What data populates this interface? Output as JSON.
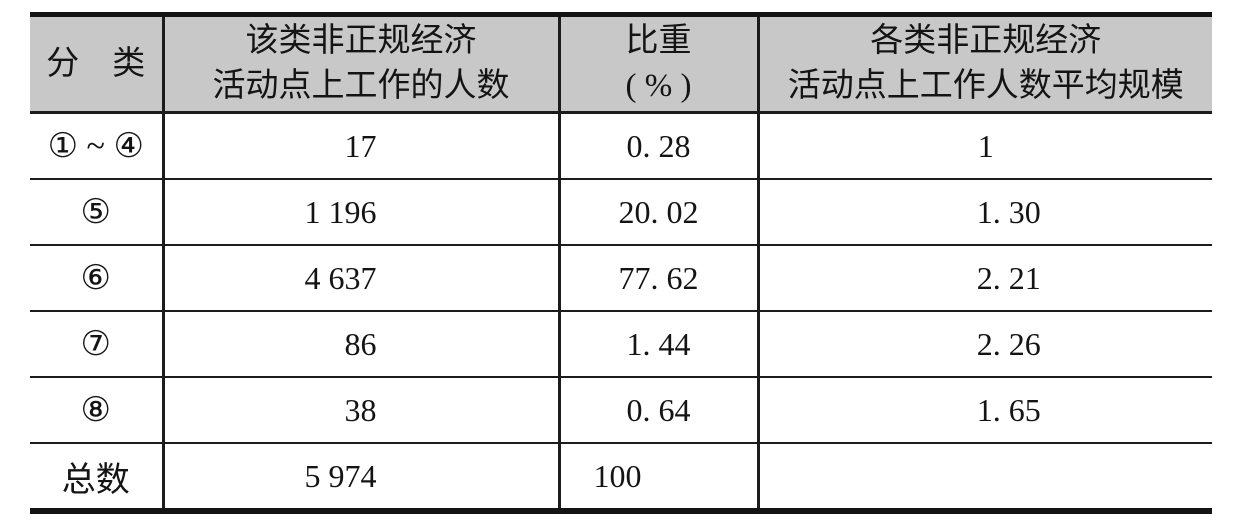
{
  "table": {
    "header": {
      "category": "分　类",
      "workers_line1": "该类非正规经济",
      "workers_line2": "活动点上工作的人数",
      "percent_line1": "比重",
      "percent_line2": "( % )",
      "avg_line1": "各类非正规经济",
      "avg_line2": "活动点上工作人数平均规模"
    },
    "rows": [
      {
        "category": "① ~ ④",
        "workers": "17",
        "percent": "0. 28",
        "avg": "1"
      },
      {
        "category": "⑤",
        "workers": "1 196",
        "percent": "20. 02",
        "avg": "1. 30"
      },
      {
        "category": "⑥",
        "workers": "4 637",
        "percent": "77. 62",
        "avg": "2. 21"
      },
      {
        "category": "⑦",
        "workers": "86",
        "percent": "1. 44",
        "avg": "2. 26"
      },
      {
        "category": "⑧",
        "workers": "38",
        "percent": "0. 64",
        "avg": "1. 65"
      },
      {
        "category": "总数",
        "workers": "5 974",
        "percent": "100",
        "avg": ""
      }
    ],
    "colors": {
      "header_bg": "#c8c8c8",
      "border": "#1c1c1c",
      "text": "#141414"
    }
  }
}
